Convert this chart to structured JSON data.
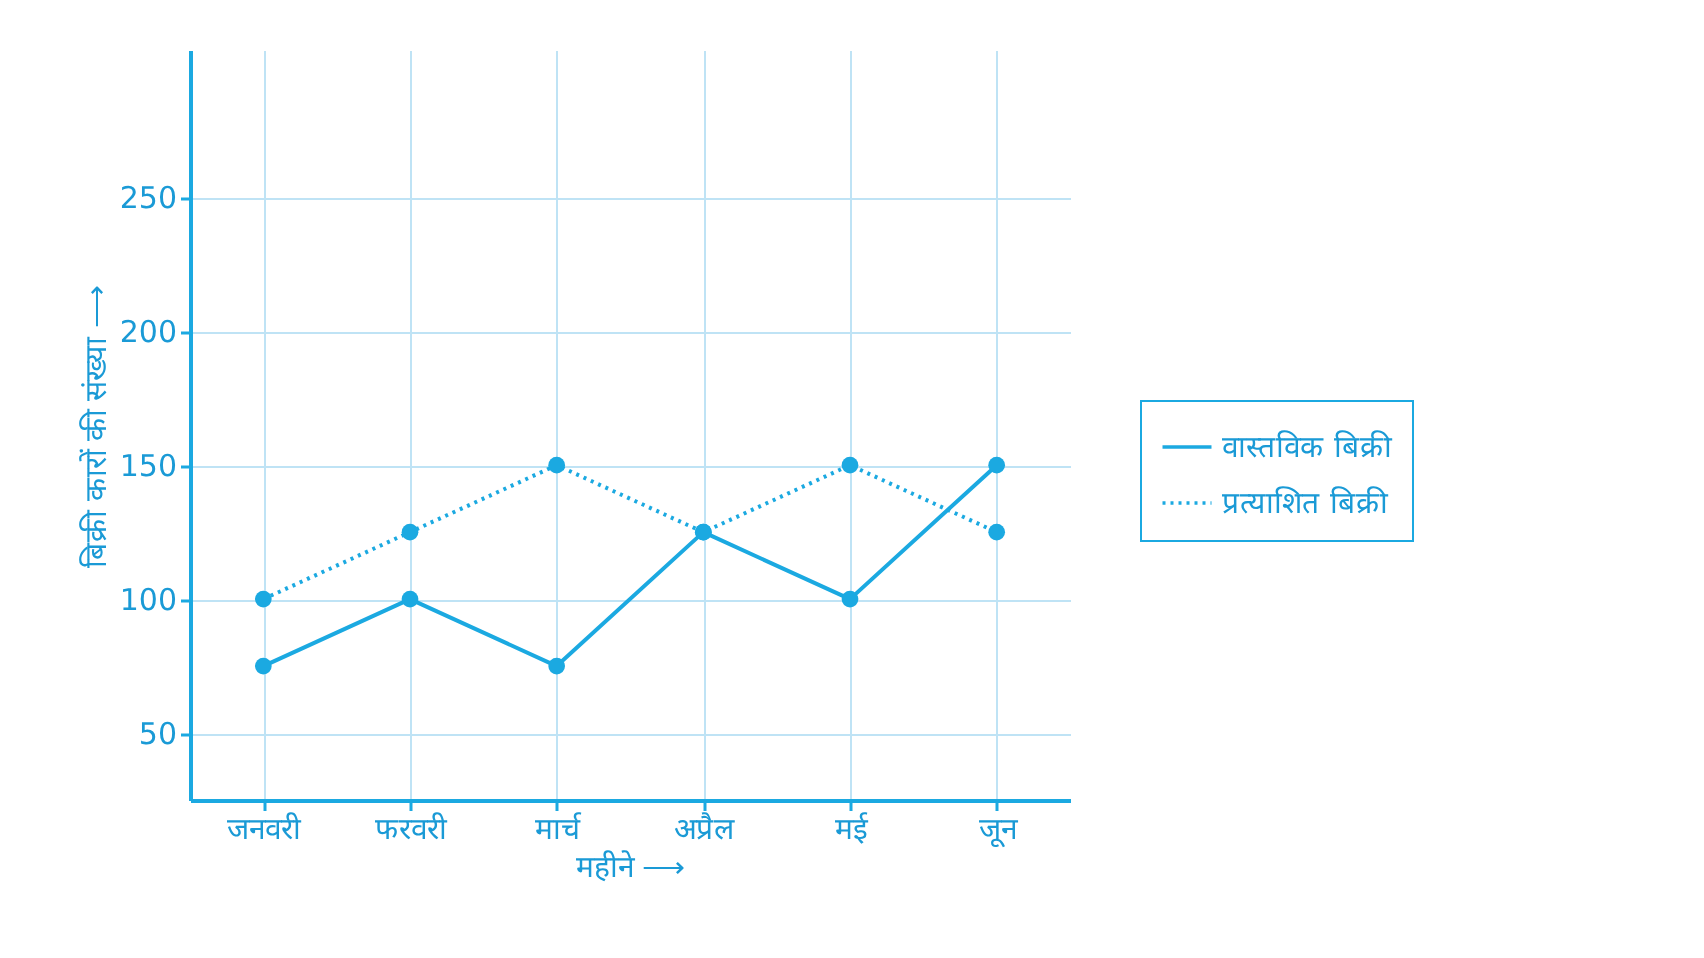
{
  "chart_data": {
    "type": "line",
    "xlabel": "महीने ⟶",
    "ylabel": "बिक्री कारों की संख्या ⟶",
    "categories": [
      "जनवरी",
      "फरवरी",
      "मार्च",
      "अप्रैल",
      "मई",
      "जून"
    ],
    "series": [
      {
        "name": "वास्तविक बिक्री",
        "color": "#1ba9e1",
        "line_style": "solid",
        "values": [
          75,
          100,
          75,
          125,
          100,
          150
        ]
      },
      {
        "name": "प्रत्याशित बिक्री",
        "color": "#1ba9e1",
        "line_style": "dotted",
        "values": [
          100,
          125,
          150,
          125,
          150,
          125
        ]
      }
    ],
    "ylim": [
      25,
      305
    ],
    "yticks": [
      50,
      100,
      150,
      200,
      250
    ],
    "grid": true,
    "legend": "right",
    "marker": "circle"
  }
}
